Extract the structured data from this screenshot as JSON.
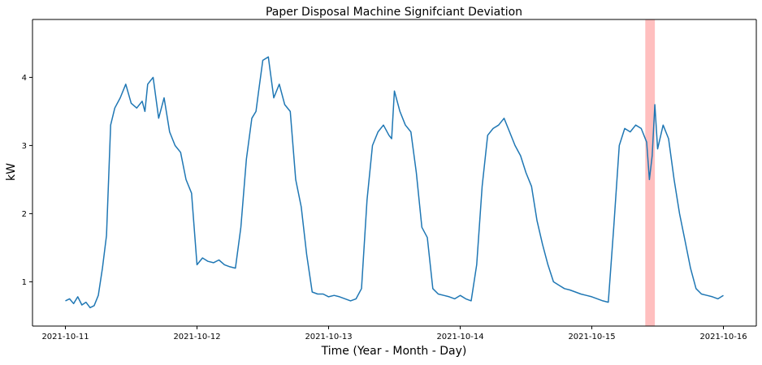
{
  "chart_data": {
    "type": "line",
    "title": "Paper Disposal Machine Signifciant Deviation",
    "xlabel": "Time (Year - Month - Day)",
    "ylabel": "kW",
    "xlim": [
      "2021-10-10T18:00",
      "2021-10-16T06:00"
    ],
    "ylim": [
      0.35,
      4.85
    ],
    "grid": false,
    "legend": "none",
    "x_ticks": [
      {
        "value": "2021-10-11",
        "label": "2021-10-11"
      },
      {
        "value": "2021-10-12",
        "label": "2021-10-12"
      },
      {
        "value": "2021-10-13",
        "label": "2021-10-13"
      },
      {
        "value": "2021-10-14",
        "label": "2021-10-14"
      },
      {
        "value": "2021-10-15",
        "label": "2021-10-15"
      },
      {
        "value": "2021-10-16",
        "label": "2021-10-16"
      }
    ],
    "y_ticks": [
      {
        "value": 1,
        "label": "1"
      },
      {
        "value": 2,
        "label": "2"
      },
      {
        "value": 3,
        "label": "3"
      },
      {
        "value": 4,
        "label": "4"
      }
    ],
    "line_color": "#1f77b4",
    "highlight": {
      "start": "2021-10-15T09:45",
      "end": "2021-10-15T11:30",
      "color": "#ff0000",
      "opacity": 0.25
    },
    "series": [
      {
        "x": [
          "2021-10-11T00:00",
          "2021-10-11T00:45",
          "2021-10-11T01:30",
          "2021-10-11T02:15",
          "2021-10-11T03:00",
          "2021-10-11T03:45",
          "2021-10-11T04:30",
          "2021-10-11T05:15",
          "2021-10-11T06:00",
          "2021-10-11T06:45",
          "2021-10-11T07:30",
          "2021-10-11T08:15",
          "2021-10-11T09:00",
          "2021-10-11T10:00",
          "2021-10-11T11:00",
          "2021-10-11T12:00",
          "2021-10-11T13:00",
          "2021-10-11T14:00",
          "2021-10-11T14:30",
          "2021-10-11T15:00",
          "2021-10-11T16:00",
          "2021-10-11T17:00",
          "2021-10-11T18:00",
          "2021-10-11T19:00",
          "2021-10-11T20:00",
          "2021-10-11T21:00",
          "2021-10-11T22:00",
          "2021-10-11T23:00",
          "2021-10-12T00:00",
          "2021-10-12T01:00",
          "2021-10-12T02:00",
          "2021-10-12T03:00",
          "2021-10-12T04:00",
          "2021-10-12T05:00",
          "2021-10-12T06:00",
          "2021-10-12T07:00",
          "2021-10-12T08:00",
          "2021-10-12T09:00",
          "2021-10-12T10:00",
          "2021-10-12T10:45",
          "2021-10-12T11:15",
          "2021-10-12T12:00",
          "2021-10-12T13:00",
          "2021-10-12T14:00",
          "2021-10-12T15:00",
          "2021-10-12T16:00",
          "2021-10-12T17:00",
          "2021-10-12T18:00",
          "2021-10-12T19:00",
          "2021-10-12T20:00",
          "2021-10-12T21:00",
          "2021-10-12T22:00",
          "2021-10-12T23:00",
          "2021-10-13T00:00",
          "2021-10-13T01:00",
          "2021-10-13T02:00",
          "2021-10-13T03:00",
          "2021-10-13T04:00",
          "2021-10-13T05:00",
          "2021-10-13T06:00",
          "2021-10-13T07:00",
          "2021-10-13T08:00",
          "2021-10-13T09:00",
          "2021-10-13T10:00",
          "2021-10-13T11:00",
          "2021-10-13T11:30",
          "2021-10-13T12:00",
          "2021-10-13T13:00",
          "2021-10-13T14:00",
          "2021-10-13T15:00",
          "2021-10-13T16:00",
          "2021-10-13T17:00",
          "2021-10-13T18:00",
          "2021-10-13T19:00",
          "2021-10-13T20:00",
          "2021-10-13T21:00",
          "2021-10-13T22:00",
          "2021-10-13T23:00",
          "2021-10-14T00:00",
          "2021-10-14T01:00",
          "2021-10-14T02:00",
          "2021-10-14T03:00",
          "2021-10-14T04:00",
          "2021-10-14T05:00",
          "2021-10-14T06:00",
          "2021-10-14T07:00",
          "2021-10-14T08:00",
          "2021-10-14T09:00",
          "2021-10-14T10:00",
          "2021-10-14T11:00",
          "2021-10-14T12:00",
          "2021-10-14T13:00",
          "2021-10-14T14:00",
          "2021-10-14T15:00",
          "2021-10-14T16:00",
          "2021-10-14T17:00",
          "2021-10-14T18:00",
          "2021-10-14T19:00",
          "2021-10-14T20:00",
          "2021-10-14T21:00",
          "2021-10-14T22:00",
          "2021-10-14T23:00",
          "2021-10-15T00:00",
          "2021-10-15T01:00",
          "2021-10-15T02:00",
          "2021-10-15T03:00",
          "2021-10-15T04:00",
          "2021-10-15T05:00",
          "2021-10-15T06:00",
          "2021-10-15T07:00",
          "2021-10-15T08:00",
          "2021-10-15T09:00",
          "2021-10-15T10:00",
          "2021-10-15T10:30",
          "2021-10-15T11:00",
          "2021-10-15T11:30",
          "2021-10-15T12:00",
          "2021-10-15T13:00",
          "2021-10-15T14:00",
          "2021-10-15T15:00",
          "2021-10-15T16:00",
          "2021-10-15T17:00",
          "2021-10-15T18:00",
          "2021-10-15T19:00",
          "2021-10-15T20:00",
          "2021-10-15T21:00",
          "2021-10-15T22:00",
          "2021-10-15T23:00",
          "2021-10-16T00:00"
        ],
        "y": [
          0.72,
          0.75,
          0.68,
          0.78,
          0.66,
          0.7,
          0.62,
          0.65,
          0.8,
          1.2,
          1.68,
          3.3,
          3.55,
          3.7,
          3.9,
          3.62,
          3.55,
          3.65,
          3.5,
          3.9,
          4.0,
          3.4,
          3.7,
          3.2,
          3.0,
          2.9,
          2.5,
          2.3,
          1.25,
          1.35,
          1.3,
          1.28,
          1.32,
          1.25,
          1.22,
          1.2,
          1.8,
          2.8,
          3.4,
          3.5,
          3.8,
          4.25,
          4.3,
          3.7,
          3.9,
          3.6,
          3.5,
          2.5,
          2.1,
          1.4,
          0.85,
          0.82,
          0.82,
          0.78,
          0.8,
          0.78,
          0.75,
          0.72,
          0.75,
          0.9,
          2.2,
          3.0,
          3.2,
          3.3,
          3.15,
          3.1,
          3.8,
          3.5,
          3.3,
          3.2,
          2.6,
          1.8,
          1.65,
          0.9,
          0.82,
          0.8,
          0.78,
          0.75,
          0.8,
          0.75,
          0.72,
          1.25,
          2.4,
          3.15,
          3.25,
          3.3,
          3.4,
          3.2,
          3.0,
          2.85,
          2.6,
          2.4,
          1.9,
          1.55,
          1.25,
          1.0,
          0.95,
          0.9,
          0.88,
          0.85,
          0.82,
          0.8,
          0.78,
          0.75,
          0.72,
          0.7,
          1.8,
          3.0,
          3.25,
          3.2,
          3.3,
          3.25,
          3.05,
          2.5,
          2.85,
          3.6,
          2.95,
          3.3,
          3.1,
          2.5,
          2.0,
          1.6,
          1.2,
          0.9,
          0.82,
          0.8,
          0.78,
          0.75,
          0.8
        ]
      }
    ]
  }
}
